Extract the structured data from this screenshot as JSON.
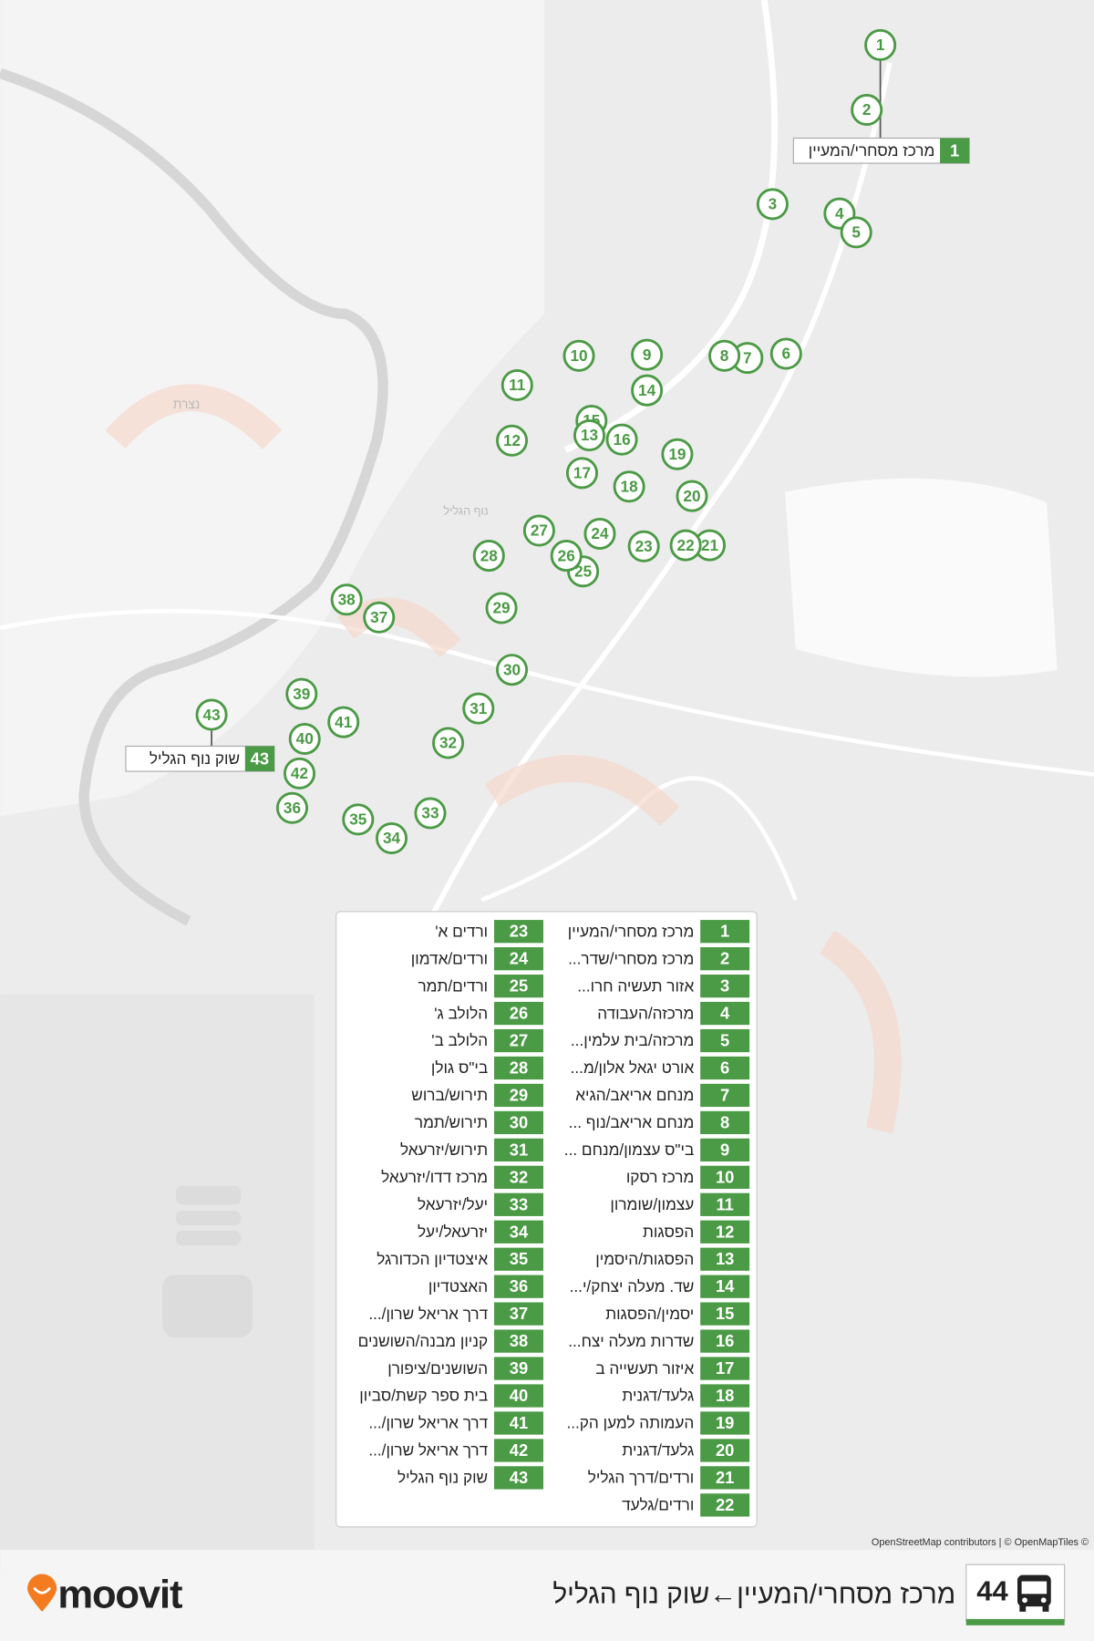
{
  "map_labels": [
    "נצרת",
    "נוף הגליל"
  ],
  "stops": [
    {
      "number": 1,
      "name": "מרכז מסחרי/המעיין"
    },
    {
      "number": 2,
      "name": "מרכז מסחרי/שדר..."
    },
    {
      "number": 3,
      "name": "אזור תעשיה חרו..."
    },
    {
      "number": 4,
      "name": "מרכזה/העבודה"
    },
    {
      "number": 5,
      "name": "מרכזה/בית עלמין..."
    },
    {
      "number": 6,
      "name": "אורט יגאל אלון/מ..."
    },
    {
      "number": 7,
      "name": "מנחם אריאב/הגיא"
    },
    {
      "number": 8,
      "name": "מנחם אריאב/נוף ..."
    },
    {
      "number": 9,
      "name": "בי\"ס עצמון/מנחם ..."
    },
    {
      "number": 10,
      "name": "מרכז רסקו"
    },
    {
      "number": 11,
      "name": "עצמון/שומרון"
    },
    {
      "number": 12,
      "name": "הפסגות"
    },
    {
      "number": 13,
      "name": "הפסגות/היסמין"
    },
    {
      "number": 14,
      "name": "שד. מעלה יצחק/י..."
    },
    {
      "number": 15,
      "name": "יסמין/הפסגות"
    },
    {
      "number": 16,
      "name": "שדרות מעלה יצח..."
    },
    {
      "number": 17,
      "name": "איזור תעשייה ב"
    },
    {
      "number": 18,
      "name": "גלעד/דגנית"
    },
    {
      "number": 19,
      "name": "העמותה למען הק..."
    },
    {
      "number": 20,
      "name": "גלעד/דגנית"
    },
    {
      "number": 21,
      "name": "ורדים/דרך הגליל"
    },
    {
      "number": 22,
      "name": "ורדים/גלעד"
    },
    {
      "number": 23,
      "name": "ורדים א'"
    },
    {
      "number": 24,
      "name": "ורדים/אדמון"
    },
    {
      "number": 25,
      "name": "ורדים/תמר"
    },
    {
      "number": 26,
      "name": "הלולב ג'"
    },
    {
      "number": 27,
      "name": "הלולב ב'"
    },
    {
      "number": 28,
      "name": "בי\"ס גולן"
    },
    {
      "number": 29,
      "name": "תירוש/ברוש"
    },
    {
      "number": 30,
      "name": "תירוש/תמר"
    },
    {
      "number": 31,
      "name": "תירוש/יזרעאל"
    },
    {
      "number": 32,
      "name": "מרכז דדו/יזרעאל"
    },
    {
      "number": 33,
      "name": "יעל/יזרעאל"
    },
    {
      "number": 34,
      "name": "יזרעאל/יעל"
    },
    {
      "number": 35,
      "name": "איצטדיון הכדורגל"
    },
    {
      "number": 36,
      "name": "האצטדיון"
    },
    {
      "number": 37,
      "name": "דרך אריאל שרון/..."
    },
    {
      "number": 38,
      "name": "קניון מבנה/השושנים"
    },
    {
      "number": 39,
      "name": "השושנים/ציפורן"
    },
    {
      "number": 40,
      "name": "בית ספר קשת/סביון"
    },
    {
      "number": 41,
      "name": "דרך אריאל שרון/..."
    },
    {
      "number": 42,
      "name": "דרך אריאל שרון/..."
    },
    {
      "number": 43,
      "name": "שוק נוף הגליל"
    }
  ],
  "attribution": "OpenStreetMap contributors | © OpenMapTiles ©",
  "footer": {
    "route": "44",
    "title": "מרכז מסחרי/המעיין←שוק נוף הגליל",
    "brand": "moovit"
  }
}
